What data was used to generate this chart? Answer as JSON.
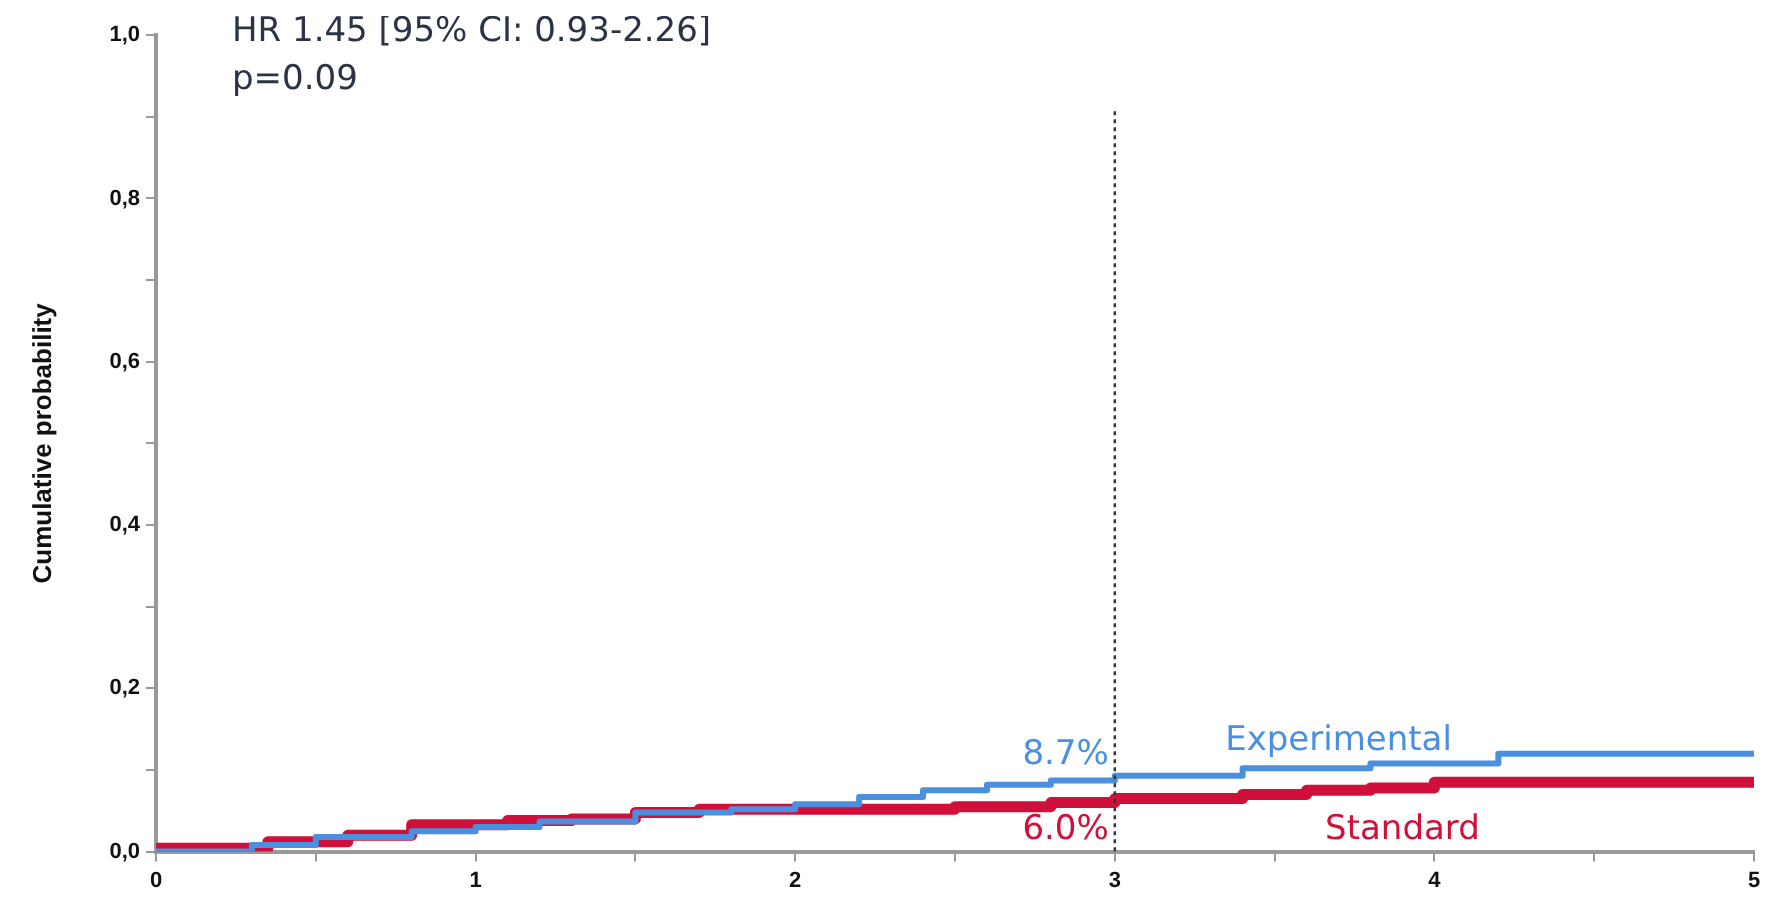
{
  "chart_data": {
    "type": "step",
    "ylabel": "Cumulative probability",
    "annotations": [
      "HR 1.45 [95% CI: 0.93-2.26]",
      "p=0.09",
      {
        "text": "8.7%",
        "x": 3,
        "y": 0.087
      },
      {
        "text": "6.0%",
        "x": 3,
        "y": 0.06
      }
    ],
    "series": [
      {
        "name": "Experimental",
        "color": "#4a8fe0",
        "x": [
          0,
          0.3,
          0.5,
          0.8,
          1.0,
          1.2,
          1.5,
          1.8,
          2.0,
          2.2,
          2.4,
          2.6,
          2.8,
          3.0,
          3.4,
          3.8,
          4.2,
          4.75,
          5.0
        ],
        "values": [
          0,
          0,
          0.008,
          0.018,
          0.025,
          0.03,
          0.037,
          0.048,
          0.052,
          0.058,
          0.067,
          0.075,
          0.082,
          0.087,
          0.093,
          0.102,
          0.108,
          0.12,
          0.12
        ]
      },
      {
        "name": "Standard",
        "color": "#d0103a",
        "x": [
          0,
          0.35,
          0.6,
          0.8,
          1.1,
          1.3,
          1.5,
          1.7,
          1.9,
          2.5,
          2.8,
          3.0,
          3.4,
          3.6,
          3.8,
          4.0,
          4.65,
          5.0
        ],
        "values": [
          0,
          0.004,
          0.012,
          0.02,
          0.033,
          0.038,
          0.04,
          0.048,
          0.052,
          0.052,
          0.055,
          0.06,
          0.065,
          0.07,
          0.075,
          0.078,
          0.085,
          0.085
        ]
      }
    ],
    "xlim": [
      0,
      5
    ],
    "xticks": [
      0,
      {
        "value": 0.5,
        "label": null
      },
      1,
      {
        "value": 1.5,
        "label": null
      },
      2,
      {
        "value": 2.5,
        "label": null
      },
      3,
      {
        "value": 3.5,
        "label": null
      },
      4,
      {
        "value": 4.5,
        "label": null
      },
      5
    ],
    "ylim": [
      0,
      1
    ],
    "yticks": [
      {
        "value": 0,
        "label": "0,0"
      },
      {
        "value": 0.1,
        "label": null
      },
      {
        "value": 0.2,
        "label": "0,2"
      },
      {
        "value": 0.3,
        "label": null
      },
      {
        "value": 0.4,
        "label": "0,4"
      },
      {
        "value": 0.5,
        "label": null
      },
      {
        "value": 0.6,
        "label": "0,6"
      },
      {
        "value": 0.7,
        "label": null
      },
      {
        "value": 0.8,
        "label": "0,8"
      },
      {
        "value": 0.9,
        "label": null
      },
      {
        "value": 1,
        "label": "1,0"
      }
    ],
    "ref_lines": [
      {
        "axis": "x",
        "value": 3,
        "color": "#333333",
        "line_style": "dotted"
      }
    ],
    "grid": false,
    "legend": false
  }
}
